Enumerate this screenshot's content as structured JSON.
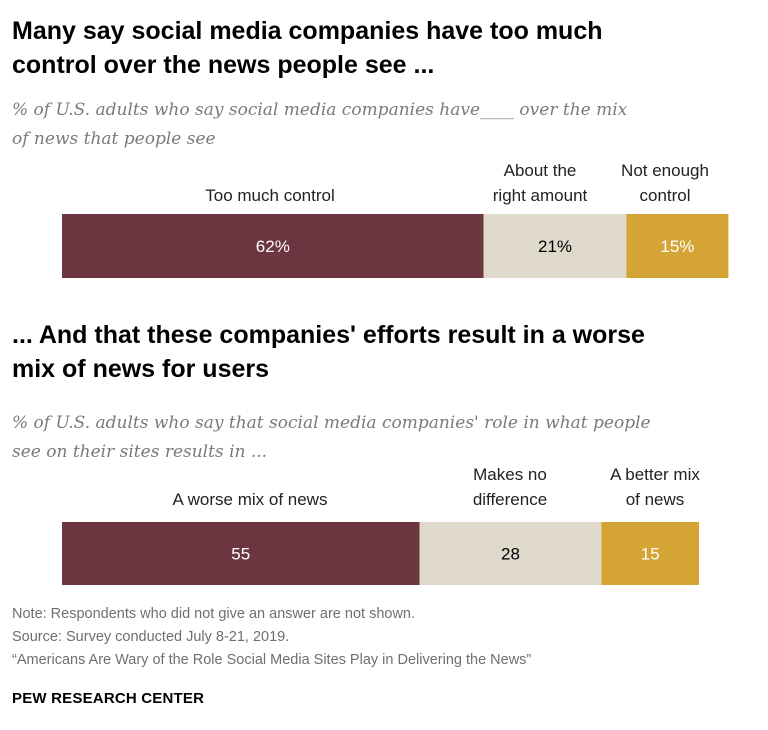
{
  "colors": {
    "worse": "#6d3540",
    "neutral": "#ded9cb",
    "better": "#d4a534",
    "label_dark": "#ffffff",
    "label_light": "#000000"
  },
  "chart_data": [
    {
      "type": "bar",
      "orientation": "horizontal-stacked",
      "title": "Many say social media companies have too much control over the news people see ...",
      "subtitle": "% of U.S. adults who say social media companies have____ over the mix of news that people see",
      "categories": [
        "Too much control",
        "About the right amount",
        "Not enough control"
      ],
      "values": [
        62,
        21,
        15
      ],
      "labels": [
        "62%",
        "21%",
        "15%"
      ],
      "category_lines": [
        [
          "Too much control"
        ],
        [
          "About the",
          "right amount"
        ],
        [
          "Not enough",
          "control"
        ]
      ]
    },
    {
      "type": "bar",
      "orientation": "horizontal-stacked",
      "title": "... And that these companies' efforts result in a worse mix of news for users",
      "subtitle": "% of U.S. adults who say that social media companies' role in what people see on their sites results in ...",
      "categories": [
        "A worse mix of news",
        "Makes no difference",
        "A better mix of news"
      ],
      "values": [
        55,
        28,
        15
      ],
      "labels": [
        "55",
        "28",
        "15"
      ],
      "category_lines": [
        [
          "A worse mix of news"
        ],
        [
          "Makes no",
          "difference"
        ],
        [
          "A better mix",
          "of news"
        ]
      ]
    }
  ],
  "text": {
    "title1_line1": "Many say social media companies have too much",
    "title1_line2": "control over the news people see ...",
    "sub1_line1": "% of U.S. adults who say social media companies have____ over the mix",
    "sub1_line2": "of news that people see",
    "title2_line1": "... And that these companies' efforts result in a worse",
    "title2_line2": "mix of news for users",
    "sub2_line1": "% of U.S. adults who say that social media companies' role in what people",
    "sub2_line2": "see on their sites results in ..."
  },
  "notes": {
    "note": "Note: Respondents who did not give an answer are not shown.",
    "source": "Source: Survey conducted July 8-21, 2019.",
    "report": "“Americans Are Wary of the Role Social Media Sites Play in Delivering the News”",
    "org": "PEW RESEARCH CENTER"
  }
}
